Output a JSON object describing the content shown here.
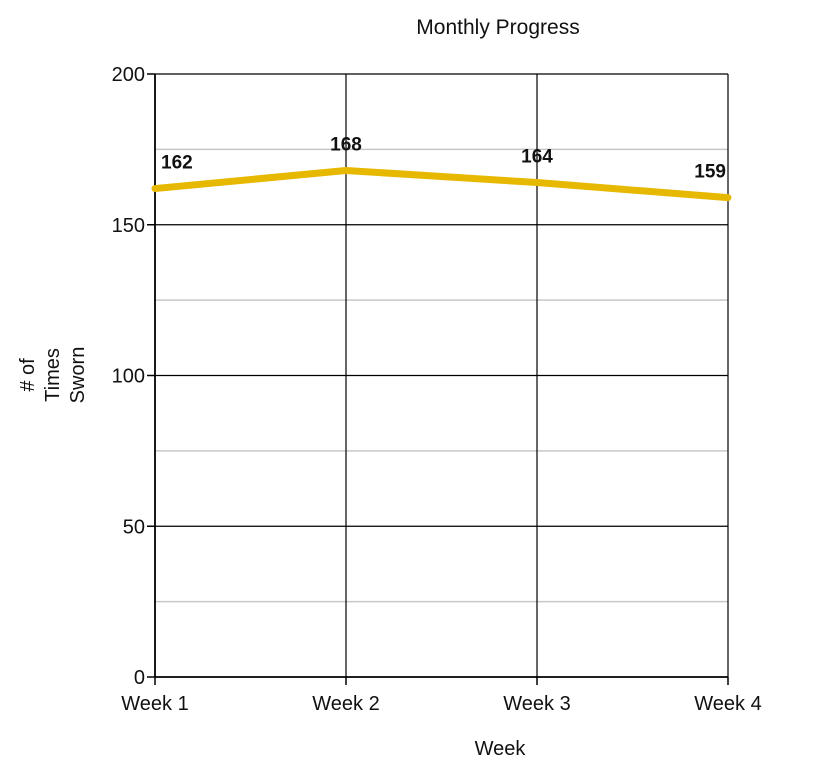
{
  "chart_data": {
    "type": "line",
    "title": "Monthly Progress",
    "xlabel": "Week",
    "ylabel_lines": [
      "# of",
      "Times",
      "Sworn"
    ],
    "categories": [
      "Week 1",
      "Week 2",
      "Week 3",
      "Week 4"
    ],
    "series": [
      {
        "values": [
          162,
          168,
          164,
          159
        ],
        "color": "#e6b800"
      }
    ],
    "ylim": [
      0,
      200
    ],
    "y_ticks": [
      0,
      50,
      100,
      150,
      200
    ],
    "y_minor_gridlines": [
      25,
      75,
      125,
      175
    ],
    "grid": true,
    "data_labels": true
  }
}
